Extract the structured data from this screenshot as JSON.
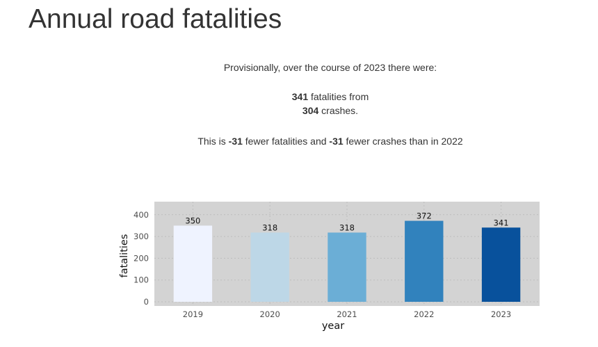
{
  "page": {
    "title": "Annual road fatalities"
  },
  "summary": {
    "intro": "Provisionally, over the course of 2023 there were:",
    "fatalities": "341",
    "fatalities_suffix": " fatalities from",
    "crashes": "304",
    "crashes_suffix": " crashes.",
    "compare_prefix": "This is ",
    "fatalities_diff": "-31",
    "compare_mid": " fewer fatalities and ",
    "crashes_diff": "-31",
    "compare_suffix": " fewer crashes than in 2022"
  },
  "chart_data": {
    "type": "bar",
    "categories": [
      "2019",
      "2020",
      "2021",
      "2022",
      "2023"
    ],
    "values": [
      350,
      318,
      318,
      372,
      341
    ],
    "data_labels": [
      "350",
      "318",
      "318",
      "372",
      "341"
    ],
    "bar_colors": [
      "#eff3ff",
      "#bdd7e7",
      "#6baed6",
      "#3182bd",
      "#08519c"
    ],
    "xlabel": "year",
    "ylabel": "fatalities",
    "ylim": [
      0,
      460
    ],
    "yticks": [
      0,
      100,
      200,
      300,
      400
    ],
    "ytick_labels": [
      "0",
      "100",
      "200",
      "300",
      "400"
    ],
    "grid": true,
    "panel_background": "#d3d3d3",
    "gridline_color": "#bdbdbd"
  }
}
